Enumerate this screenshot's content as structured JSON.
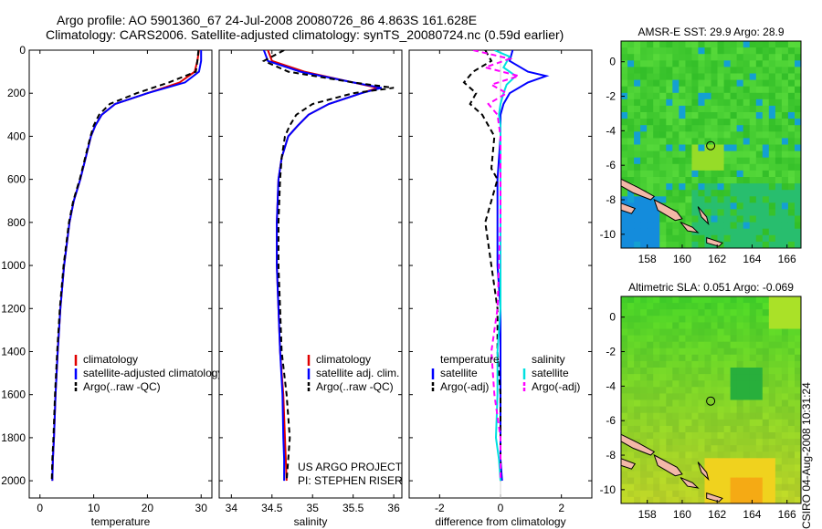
{
  "header": {
    "line1": "Argo profile: AO 5901360_67 24-Jul-2008 20080726_86 4.863S 161.628E",
    "line2": "Climatology: CARS2006. Satellite-adjusted climatology: synTS_20080724.nc (0.59d earlier)"
  },
  "side_label": "CSIRO 04-Aug-2008 10:31:24",
  "colors": {
    "climatology": "#e00000",
    "satellite": "#0000ff",
    "argo": "#000000",
    "sat_salinity": "#00e0e0",
    "argo_salinity": "#ff00ff"
  },
  "chart_data": [
    {
      "type": "line",
      "xlabel": "temperature",
      "xticks": [
        0,
        10,
        20,
        30
      ],
      "xlim": [
        -2,
        32
      ],
      "ylim": [
        2080,
        0
      ],
      "yticks": [
        0,
        200,
        400,
        600,
        800,
        1000,
        1200,
        1400,
        1600,
        1800,
        2000
      ],
      "legend": [
        "climatology",
        "satellite-adjusted climatology",
        "Argo(..raw -QC)"
      ],
      "legend_position": "lower-right",
      "series": [
        {
          "name": "climatology",
          "color": "#e00000",
          "x": [
            29.6,
            29.3,
            28.8,
            26,
            20,
            14,
            11.5,
            10.3,
            9.5,
            8.5,
            7.5,
            6.3,
            5.5,
            4.5,
            3.8,
            3.3,
            2.9,
            2.6,
            2.4,
            2.3
          ],
          "y": [
            0,
            50,
            100,
            150,
            200,
            250,
            300,
            350,
            400,
            500,
            600,
            700,
            800,
            1000,
            1200,
            1400,
            1600,
            1800,
            1900,
            2000
          ]
        },
        {
          "name": "satellite-adjusted climatology",
          "color": "#0000ff",
          "x": [
            30,
            30,
            29.6,
            27,
            20,
            14,
            11.5,
            10.3,
            9.5,
            8.5,
            7.5,
            6.3,
            5.5,
            4.5,
            3.8,
            3.3,
            2.9,
            2.6,
            2.4,
            2.3
          ],
          "y": [
            0,
            50,
            100,
            150,
            200,
            250,
            300,
            350,
            400,
            500,
            600,
            700,
            800,
            1000,
            1200,
            1400,
            1600,
            1800,
            1900,
            2000
          ]
        },
        {
          "name": "Argo(..raw -QC)",
          "color": "#000000",
          "x": [
            29.5,
            29.3,
            29,
            24,
            18,
            13,
            11,
            10,
            9.4,
            8.4,
            7.4,
            6.2,
            5.4,
            4.4,
            3.7,
            3.2,
            2.8,
            2.5,
            2.3,
            2.2
          ],
          "y": [
            0,
            50,
            100,
            150,
            200,
            250,
            300,
            350,
            400,
            500,
            600,
            700,
            800,
            1000,
            1200,
            1400,
            1600,
            1800,
            1900,
            2000
          ]
        }
      ]
    },
    {
      "type": "line",
      "xlabel": "salinity",
      "xticks": [
        34,
        34.5,
        35,
        35.5,
        36
      ],
      "xlim": [
        33.85,
        36.1
      ],
      "ylim": [
        2080,
        0
      ],
      "legend": [
        "climatology",
        "satellite adj. clim.",
        "Argo(..raw -QC)"
      ],
      "legend_position": "lower-right",
      "annotation": [
        "US ARGO PROJECT",
        "PI: STEPHEN RISER"
      ],
      "series": [
        {
          "name": "climatology",
          "color": "#e00000",
          "x": [
            34.45,
            34.5,
            34.9,
            35.5,
            35.8,
            35.6,
            35.2,
            34.95,
            34.82,
            34.7,
            34.62,
            34.58,
            34.56,
            34.56,
            34.58,
            34.6,
            34.64,
            34.66,
            34.67,
            34.68
          ],
          "y": [
            0,
            50,
            100,
            150,
            175,
            200,
            250,
            300,
            350,
            400,
            500,
            600,
            800,
            1000,
            1200,
            1400,
            1600,
            1800,
            1900,
            2000
          ]
        },
        {
          "name": "satellite adj. clim.",
          "color": "#0000ff",
          "x": [
            34.4,
            34.45,
            34.85,
            35.5,
            35.85,
            35.6,
            35.2,
            34.95,
            34.82,
            34.7,
            34.62,
            34.58,
            34.56,
            34.56,
            34.58,
            34.6,
            34.63,
            34.64,
            34.65,
            34.65
          ],
          "y": [
            0,
            50,
            100,
            150,
            175,
            200,
            250,
            300,
            350,
            400,
            500,
            600,
            800,
            1000,
            1200,
            1400,
            1600,
            1800,
            1900,
            2000
          ]
        },
        {
          "name": "Argo(..raw -QC)",
          "color": "#000000",
          "x": [
            34.65,
            34.4,
            34.7,
            35.5,
            36,
            35.5,
            35,
            34.8,
            34.72,
            34.66,
            34.62,
            34.6,
            34.58,
            34.58,
            34.6,
            34.62,
            34.68,
            34.72,
            34.7,
            34.68
          ],
          "y": [
            0,
            50,
            100,
            150,
            175,
            200,
            250,
            300,
            350,
            400,
            500,
            600,
            800,
            1000,
            1200,
            1400,
            1600,
            1800,
            1900,
            2000
          ]
        }
      ]
    },
    {
      "type": "line",
      "xlabel": "difference from climatology",
      "xticks": [
        -2,
        0,
        2
      ],
      "xlim": [
        -3,
        3
      ],
      "ylim": [
        2080,
        0
      ],
      "legend_groups": [
        {
          "title": "temperature",
          "items": [
            "satellite",
            "Argo(-adj)"
          ]
        },
        {
          "title": "salinity",
          "items": [
            "satellite",
            "Argo(-adj)"
          ]
        }
      ],
      "legend_position": "lower-right",
      "series": [
        {
          "name": "temperature satellite",
          "color": "#0000ff",
          "x": [
            0.4,
            0.3,
            0.9,
            1.5,
            0.9,
            0.3,
            0.1,
            0,
            0,
            0,
            -0.1,
            -0.1,
            -0.1,
            0,
            0,
            0,
            0,
            0,
            0.05
          ],
          "y": [
            0,
            50,
            100,
            120,
            150,
            200,
            250,
            300,
            350,
            400,
            600,
            800,
            1000,
            1200,
            1400,
            1600,
            1800,
            1900,
            2000
          ]
        },
        {
          "name": "temperature Argo(-adj)",
          "color": "#000000",
          "x": [
            -0.5,
            -0.3,
            -0.9,
            -1.2,
            -0.8,
            -1,
            -0.6,
            -0.4,
            -0.2,
            -0.3,
            -0.1,
            -0.5,
            -0.3,
            -0.1,
            -0.1,
            0,
            0,
            0,
            0
          ],
          "y": [
            0,
            50,
            100,
            150,
            200,
            250,
            300,
            350,
            400,
            550,
            600,
            800,
            1000,
            1200,
            1400,
            1600,
            1800,
            1900,
            2000
          ]
        },
        {
          "name": "salinity satellite",
          "color": "#00e0e0",
          "x": [
            -0.2,
            0.3,
            0.1,
            0.5,
            0.2,
            0.1,
            0,
            -0.05,
            0,
            0,
            0,
            0,
            0,
            0,
            -0.1,
            -0.1,
            -0.15,
            -0.05,
            0
          ],
          "y": [
            0,
            30,
            80,
            120,
            160,
            200,
            250,
            300,
            350,
            400,
            600,
            800,
            1000,
            1200,
            1400,
            1600,
            1800,
            1900,
            2000
          ]
        },
        {
          "name": "salinity Argo(-adj)",
          "color": "#ff00ff",
          "x": [
            -0.9,
            0.3,
            -0.5,
            0.6,
            -0.3,
            0.2,
            -0.4,
            -0.1,
            -0.05,
            0,
            0,
            0,
            -0.05,
            -0.1,
            -0.3,
            -0.2,
            0,
            0,
            0
          ],
          "y": [
            0,
            40,
            80,
            120,
            160,
            200,
            250,
            300,
            350,
            400,
            600,
            800,
            1000,
            1200,
            1400,
            1600,
            1800,
            1900,
            2000
          ]
        }
      ]
    },
    {
      "type": "heatmap",
      "title": "AMSR-E SST: 29.9 Argo: 28.9",
      "xticks": [
        158,
        160,
        162,
        164,
        166
      ],
      "yticks": [
        0,
        -2,
        -4,
        -6,
        -8,
        -10
      ],
      "xlim": [
        156.5,
        166.8
      ],
      "ylim": [
        -10.8,
        1.2
      ],
      "profile_location": {
        "lon": 161.628,
        "lat": -4.863
      }
    },
    {
      "type": "heatmap",
      "title": "Altimetric SLA: 0.051 Argo: -0.069",
      "xticks": [
        158,
        160,
        162,
        164,
        166
      ],
      "yticks": [
        0,
        -2,
        -4,
        -6,
        -8,
        -10
      ],
      "xlim": [
        156.5,
        166.8
      ],
      "ylim": [
        -10.8,
        1.2
      ],
      "profile_location": {
        "lon": 161.628,
        "lat": -4.863
      }
    }
  ]
}
